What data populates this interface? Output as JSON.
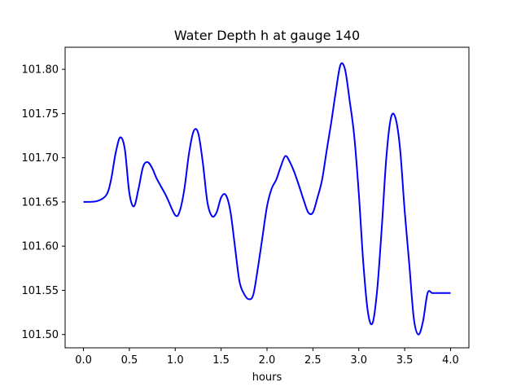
{
  "chart_data": {
    "type": "line",
    "title": "Water Depth h at gauge 140",
    "xlabel": "hours",
    "ylabel": "",
    "xlim": [
      -0.2,
      4.2
    ],
    "ylim": [
      101.485,
      101.825
    ],
    "xticks": [
      0.0,
      0.5,
      1.0,
      1.5,
      2.0,
      2.5,
      3.0,
      3.5,
      4.0
    ],
    "xtick_labels": [
      "0.0",
      "0.5",
      "1.0",
      "1.5",
      "2.0",
      "2.5",
      "3.0",
      "3.5",
      "4.0"
    ],
    "yticks": [
      101.5,
      101.55,
      101.6,
      101.65,
      101.7,
      101.75,
      101.8
    ],
    "ytick_labels": [
      "101.50",
      "101.55",
      "101.60",
      "101.65",
      "101.70",
      "101.75",
      "101.80"
    ],
    "grid": false,
    "line_color": "#0000ff",
    "series": [
      {
        "x": [
          0.0,
          0.15,
          0.25,
          0.3,
          0.35,
          0.4,
          0.45,
          0.5,
          0.55,
          0.6,
          0.65,
          0.7,
          0.75,
          0.8,
          0.9,
          1.0,
          1.05,
          1.1,
          1.15,
          1.2,
          1.25,
          1.3,
          1.35,
          1.4,
          1.45,
          1.5,
          1.55,
          1.6,
          1.65,
          1.7,
          1.75,
          1.8,
          1.85,
          1.9,
          1.95,
          2.0,
          2.05,
          2.1,
          2.15,
          2.2,
          2.25,
          2.3,
          2.35,
          2.4,
          2.45,
          2.5,
          2.55,
          2.6,
          2.65,
          2.7,
          2.75,
          2.8,
          2.85,
          2.9,
          2.95,
          3.0,
          3.05,
          3.1,
          3.15,
          3.2,
          3.25,
          3.3,
          3.35,
          3.4,
          3.45,
          3.5,
          3.55,
          3.6,
          3.65,
          3.7,
          3.75,
          3.8,
          3.85,
          3.9,
          3.95,
          4.0
        ],
        "y": [
          101.65,
          101.651,
          101.658,
          101.675,
          101.705,
          101.723,
          101.71,
          101.66,
          101.645,
          101.665,
          101.69,
          101.695,
          101.688,
          101.676,
          101.657,
          101.635,
          101.64,
          101.665,
          101.705,
          101.73,
          101.728,
          101.695,
          101.65,
          101.634,
          101.638,
          101.655,
          101.658,
          101.64,
          101.6,
          101.56,
          101.546,
          101.54,
          101.545,
          101.575,
          101.61,
          101.645,
          101.665,
          101.675,
          101.69,
          101.702,
          101.695,
          101.683,
          101.668,
          101.652,
          101.638,
          101.638,
          101.655,
          101.675,
          101.708,
          101.74,
          101.775,
          101.805,
          101.8,
          101.765,
          101.725,
          101.66,
          101.58,
          101.525,
          101.513,
          101.55,
          101.62,
          101.7,
          101.745,
          101.745,
          101.71,
          101.64,
          101.58,
          101.518,
          101.5,
          101.515,
          101.547,
          101.547,
          101.547,
          101.547,
          101.547,
          101.547
        ]
      }
    ]
  }
}
